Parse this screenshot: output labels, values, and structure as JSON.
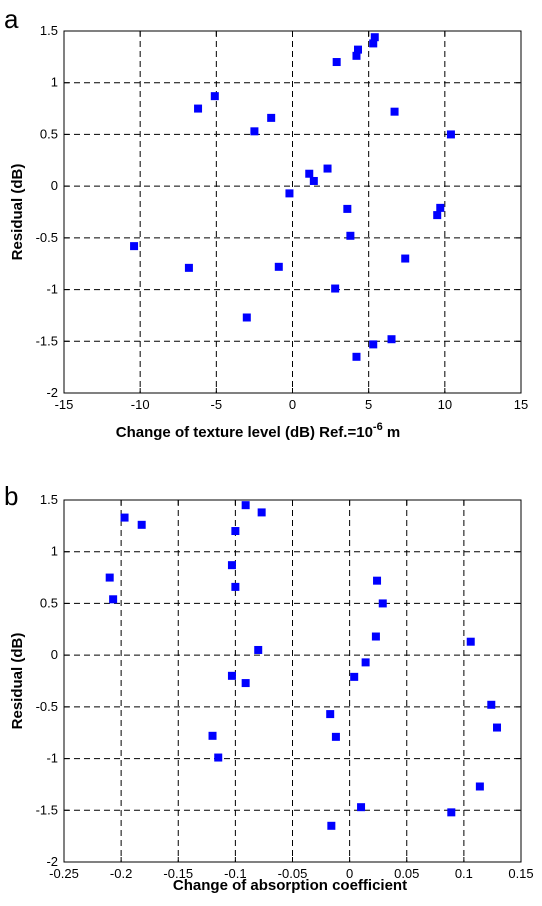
{
  "chart_data": [
    {
      "type": "scatter",
      "panel_label": "a",
      "xlabel": "Change of texture level (dB) Ref.=10",
      "xlabel_sup": "-6",
      "xlabel_tail": " m",
      "ylabel": "Residual (dB)",
      "xlim": [
        -15,
        15
      ],
      "ylim": [
        -2,
        1.5
      ],
      "xticks": [
        -15,
        -10,
        -5,
        0,
        5,
        10,
        15
      ],
      "yticks": [
        -2,
        -1.5,
        -1,
        -0.5,
        0,
        0.5,
        1,
        1.5
      ],
      "grid": true,
      "marker": "square",
      "color": "#0000ff",
      "x": [
        5.4,
        5.3,
        4.3,
        4.2,
        2.9,
        -5.1,
        -6.2,
        6.7,
        -1.4,
        -2.5,
        10.4,
        1.1,
        1.4,
        2.3,
        -0.2,
        3.6,
        9.7,
        9.5,
        3.8,
        -10.4,
        -6.8,
        7.4,
        -0.9,
        2.8,
        -3.0,
        6.5,
        5.3,
        4.2
      ],
      "y": [
        1.44,
        1.38,
        1.32,
        1.26,
        1.2,
        0.87,
        0.75,
        0.72,
        0.66,
        0.53,
        0.5,
        0.12,
        0.05,
        0.17,
        -0.07,
        -0.22,
        -0.21,
        -0.28,
        -0.48,
        -0.58,
        -0.79,
        -0.7,
        -0.78,
        -0.99,
        -1.27,
        -1.48,
        -1.53,
        -1.65
      ]
    },
    {
      "type": "scatter",
      "panel_label": "b",
      "xlabel": "Change of absorption coefficient",
      "ylabel": "Residual (dB)",
      "xlim": [
        -0.25,
        0.15
      ],
      "ylim": [
        -2,
        1.5
      ],
      "xticks": [
        -0.25,
        -0.2,
        -0.15,
        -0.1,
        -0.05,
        0,
        0.05,
        0.1,
        0.15
      ],
      "yticks": [
        -2,
        -1.5,
        -1,
        -0.5,
        0,
        0.5,
        1,
        1.5
      ],
      "grid": true,
      "marker": "square",
      "color": "#0000ff",
      "x": [
        -0.091,
        -0.077,
        -0.197,
        -0.182,
        -0.1,
        -0.103,
        -0.21,
        -0.207,
        -0.1,
        0.024,
        0.029,
        0.023,
        0.106,
        -0.08,
        0.014,
        0.004,
        -0.103,
        -0.091,
        0.124,
        -0.017,
        0.129,
        -0.12,
        -0.012,
        -0.115,
        0.114,
        0.01,
        0.089,
        -0.016
      ],
      "y": [
        1.45,
        1.38,
        1.33,
        1.26,
        1.2,
        0.87,
        0.75,
        0.54,
        0.66,
        0.72,
        0.5,
        0.18,
        0.13,
        0.05,
        -0.07,
        -0.21,
        -0.2,
        -0.27,
        -0.48,
        -0.57,
        -0.7,
        -0.78,
        -0.79,
        -0.99,
        -1.27,
        -1.47,
        -1.52,
        -1.65
      ]
    }
  ]
}
